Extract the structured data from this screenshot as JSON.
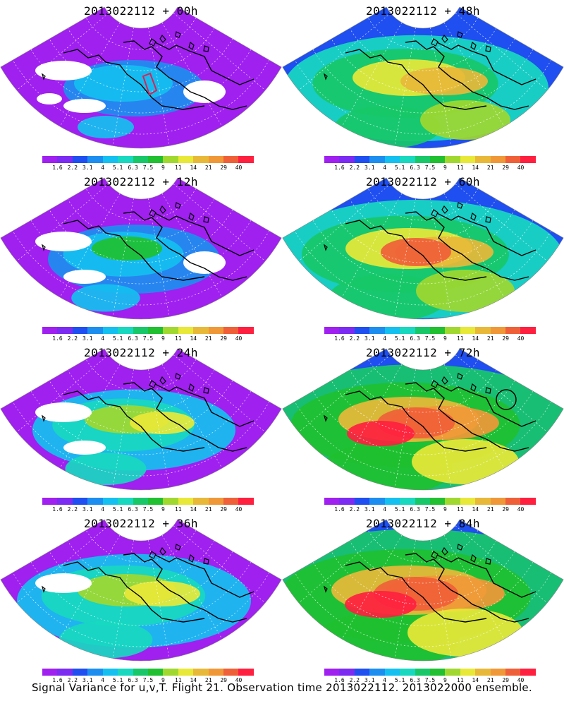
{
  "caption": "Signal Variance for u,v,T. Flight 21. Observation time 2013022112. 2013022000 ensemble.",
  "colorbar": {
    "labels": [
      "1.6",
      "2.2",
      "3.1",
      "4",
      "5.1",
      "6.3",
      "7.5",
      "9",
      "11",
      "14",
      "21",
      "29",
      "40"
    ],
    "colors": [
      "#a020f0",
      "#7b2bf2",
      "#1f4ff0",
      "#1c8ef0",
      "#14c0f0",
      "#18d8c0",
      "#18c868",
      "#20c030",
      "#a0d830",
      "#e8e838",
      "#e8b838",
      "#f09838",
      "#f06038",
      "#ff2040"
    ]
  },
  "panels": [
    {
      "title": "2013022112 + 00h",
      "level": 0
    },
    {
      "title": "2013022112 + 48h",
      "level": 4
    },
    {
      "title": "2013022112 + 12h",
      "level": 1
    },
    {
      "title": "2013022112 + 60h",
      "level": 5
    },
    {
      "title": "2013022112 + 24h",
      "level": 2
    },
    {
      "title": "2013022112 + 72h",
      "level": 6
    },
    {
      "title": "2013022112 + 36h",
      "level": 3
    },
    {
      "title": "2013022112 + 84h",
      "level": 7
    }
  ]
}
